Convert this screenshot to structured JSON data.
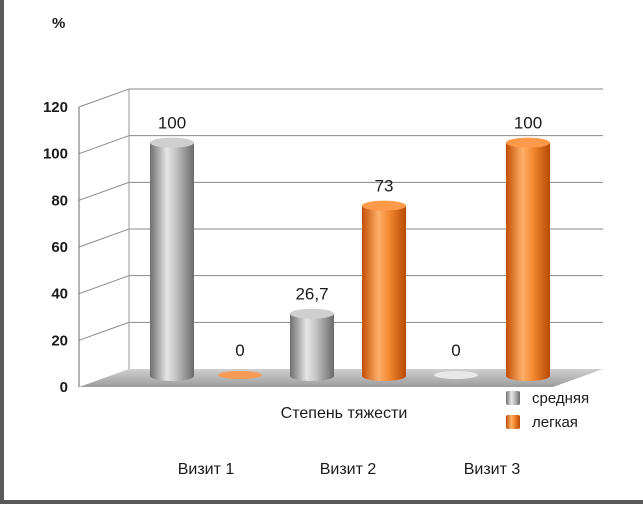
{
  "chart_data": {
    "type": "bar",
    "y_unit": "%",
    "ylim": [
      0,
      120
    ],
    "yticks": [
      0,
      20,
      40,
      60,
      80,
      100,
      120
    ],
    "xlabel": "Степень тяжести",
    "categories": [
      "Визит 1",
      "Визит 2",
      "Визит 3"
    ],
    "series": [
      {
        "name": "средняя",
        "color": "#9a9a9a",
        "values": [
          100,
          26.7,
          0
        ],
        "labels": [
          "100",
          "26,7",
          "0"
        ]
      },
      {
        "name": "легкая",
        "color": "#f07a1e",
        "values": [
          0,
          73,
          100
        ],
        "labels": [
          "0",
          "73",
          "100"
        ]
      }
    ],
    "legend": "bottom-right",
    "grid": true,
    "style": "3d-cylinder"
  }
}
